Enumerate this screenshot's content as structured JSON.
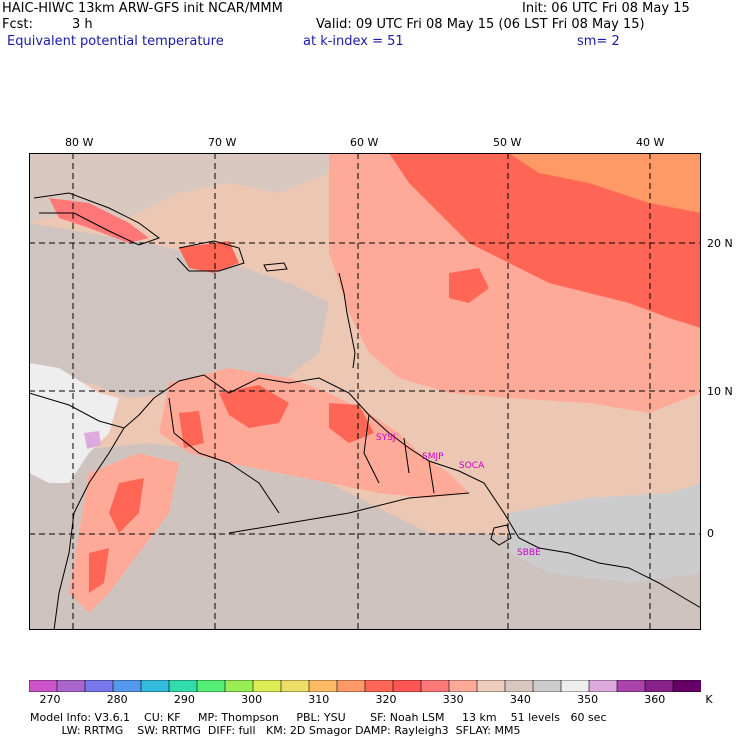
{
  "header": {
    "line1_left": "HAIC-HIWC 13km ARW-GFS init   NCAR/MMM",
    "line1_right": "Init: 06 UTC Fri 08 May 15",
    "fcst_label": "Fcst:",
    "fcst_value": "3 h",
    "valid": "Valid: 09 UTC Fri 08 May 15 (06 LST Fri 08 May 15)",
    "field_name": "Equivalent potential temperature",
    "level": "at k-index =  51",
    "smoothing": "sm= 2"
  },
  "map": {
    "lon_labels": [
      "80 W",
      "70 W",
      "60 W",
      "50 W",
      "40 W"
    ],
    "lat_labels": [
      "20 N",
      "10 N",
      "0"
    ],
    "stations": [
      "SYSJ",
      "SMJP",
      "SOCA",
      "SBBE"
    ]
  },
  "colorbar": {
    "colors": [
      "#cc55cc",
      "#aa66cc",
      "#7777ee",
      "#5599ee",
      "#33bbdd",
      "#33ddaa",
      "#55ee77",
      "#99ee55",
      "#ddee55",
      "#eedd66",
      "#ffbb66",
      "#ff9966",
      "#ff6655",
      "#ff5555",
      "#ff7777",
      "#ffaa99",
      "#eeccbb",
      "#d9c8c0",
      "#cccccc",
      "#eeeeee",
      "#ddaadd",
      "#aa44aa",
      "#882288",
      "#660066"
    ],
    "labels": [
      "270",
      "280",
      "290",
      "300",
      "310",
      "320",
      "330",
      "340",
      "350",
      "360"
    ],
    "unit": "K"
  },
  "footer": {
    "line1": "Model Info: V3.6.1    CU: KF     MP: Thompson     PBL: YSU       SF: Noah LSM     13 km    51 levels   60 sec",
    "line2": "         LW: RRTMG    SW: RRTMG  DIFF: full   KM: 2D Smagor DAMP: Rayleigh3  SFLAY: MM5"
  }
}
